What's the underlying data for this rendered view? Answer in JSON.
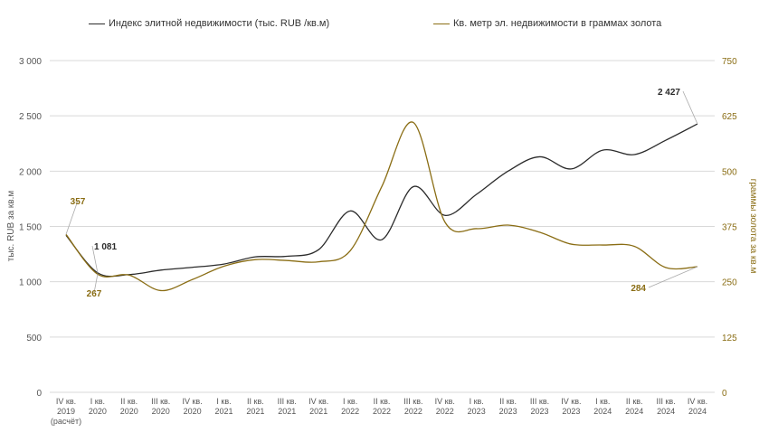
{
  "chart_data": {
    "type": "line",
    "categories": [
      [
        "IV кв.",
        "2019",
        "(расчёт)"
      ],
      [
        "I кв.",
        "2020"
      ],
      [
        "II кв.",
        "2020"
      ],
      [
        "III кв.",
        "2020"
      ],
      [
        "IV кв.",
        "2020"
      ],
      [
        "I кв.",
        "2021"
      ],
      [
        "II кв.",
        "2021"
      ],
      [
        "III кв.",
        "2021"
      ],
      [
        "IV кв.",
        "2021"
      ],
      [
        "I кв.",
        "2022"
      ],
      [
        "II кв.",
        "2022"
      ],
      [
        "III кв.",
        "2022"
      ],
      [
        "IV кв.",
        "2022"
      ],
      [
        "I кв.",
        "2023"
      ],
      [
        "II кв.",
        "2023"
      ],
      [
        "III кв.",
        "2023"
      ],
      [
        "IV кв.",
        "2023"
      ],
      [
        "I кв.",
        "2024"
      ],
      [
        "II кв.",
        "2024"
      ],
      [
        "III кв.",
        "2024"
      ],
      [
        "IV кв.",
        "2024"
      ]
    ],
    "series": [
      {
        "name": "Индекс элитной недвижимости (тыс. RUB /кв.м)",
        "axis": "left",
        "color": "#2b2b2b",
        "values": [
          1420,
          1081,
          1065,
          1105,
          1130,
          1160,
          1225,
          1230,
          1290,
          1640,
          1380,
          1860,
          1600,
          1790,
          2000,
          2130,
          2020,
          2190,
          2150,
          2280,
          2427
        ]
      },
      {
        "name": "Кв. метр эл. недвижимости в граммах золота",
        "axis": "right",
        "color": "#8a6d14",
        "values": [
          357,
          267,
          265,
          230,
          255,
          285,
          300,
          298,
          295,
          320,
          465,
          610,
          385,
          370,
          378,
          362,
          335,
          333,
          330,
          282,
          284
        ]
      }
    ],
    "ylabel_left": "тыс. RUB за кв.м",
    "ylabel_right": "граммы золота за кв.м",
    "ylim_left": [
      0,
      3000
    ],
    "ylim_right": [
      0,
      750
    ],
    "yticks_left": [
      "0",
      "500",
      "1 000",
      "1 500",
      "2 000",
      "2 500",
      "3 000"
    ],
    "yticks_right": [
      "0",
      "125",
      "250",
      "375",
      "500",
      "625",
      "750"
    ],
    "annotations": [
      {
        "series": 0,
        "index": 1,
        "text": "1 081"
      },
      {
        "series": 0,
        "index": 20,
        "text": "2 427"
      },
      {
        "series": 1,
        "index": 0,
        "text": "357"
      },
      {
        "series": 1,
        "index": 1,
        "text": "267"
      },
      {
        "series": 1,
        "index": 20,
        "text": "284"
      }
    ],
    "grid": true,
    "legend_position": "top"
  }
}
